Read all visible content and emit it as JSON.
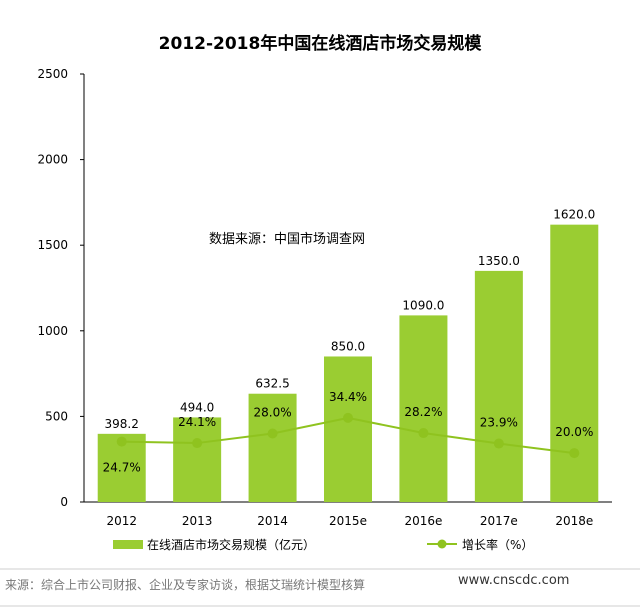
{
  "chart_data": {
    "type": "bar",
    "title": "2012-2018年中国在线酒店市场交易规模",
    "categories": [
      "2012",
      "2013",
      "2014",
      "2015e",
      "2016e",
      "2017e",
      "2018e"
    ],
    "ylim": [
      0,
      2500
    ],
    "yticks": [
      "0",
      "500",
      "1000",
      "1500",
      "2000",
      "2500"
    ],
    "grid": false,
    "legend_position": "bottom",
    "series": [
      {
        "name": "在线酒店市场交易规模（亿元）",
        "kind": "bar",
        "color": "#9acd32",
        "values": [
          398.2,
          494.0,
          632.5,
          850.0,
          1090.0,
          1350.0,
          1620.0
        ],
        "labels": [
          "398.2",
          "494.0",
          "632.5",
          "850.0",
          "1090.0",
          "1350.0",
          "1620.0"
        ]
      },
      {
        "name": "增长率（%）",
        "kind": "line",
        "color": "#8fc31f",
        "values": [
          24.7,
          24.1,
          28.0,
          34.4,
          28.2,
          23.9,
          20.0
        ],
        "labels": [
          "24.7%",
          "24.1%",
          "28.0%",
          "34.4%",
          "28.2%",
          "23.9%",
          "20.0%"
        ],
        "range": [
          0,
          175
        ]
      }
    ],
    "annotation": "数据来源：中国市场调查网"
  },
  "footer": {
    "source": "来源：综合上市公司财报、企业及专家访谈，根据艾瑞统计模型核算",
    "website": "www.cnscdc.com"
  }
}
